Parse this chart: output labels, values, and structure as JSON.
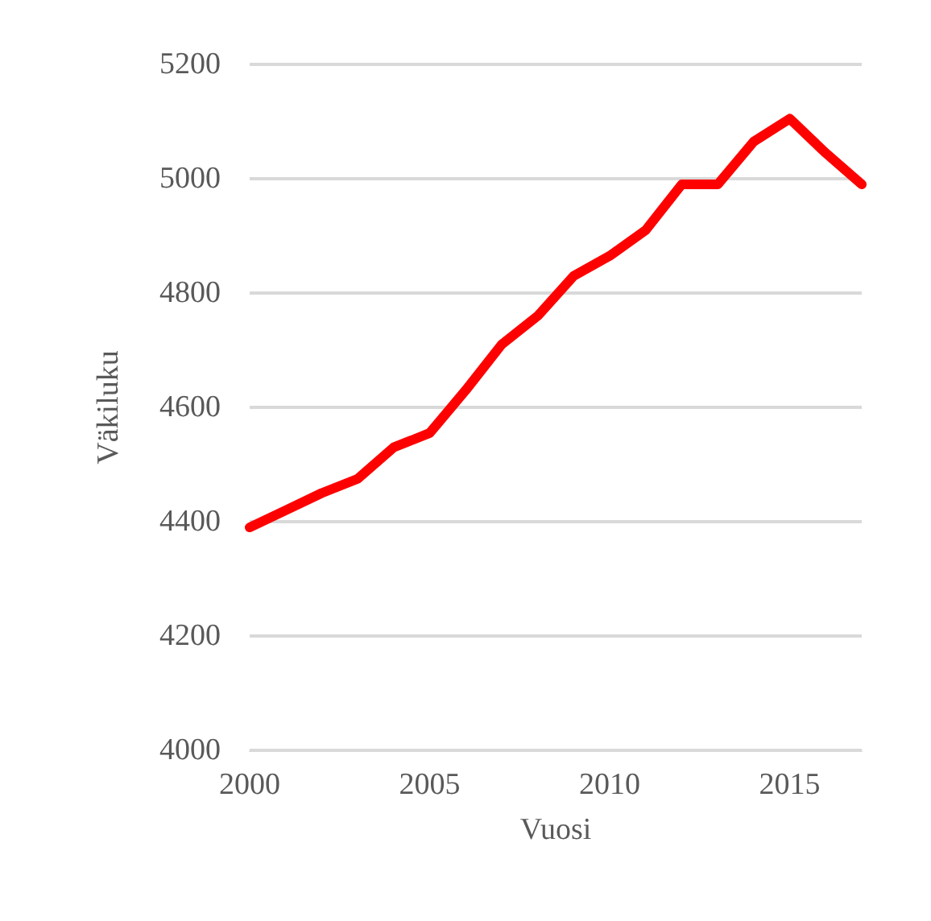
{
  "chart_data": {
    "type": "line",
    "xlabel": "Vuosi",
    "ylabel": "Väkiluku",
    "x": [
      2000,
      2001,
      2002,
      2003,
      2004,
      2005,
      2006,
      2007,
      2008,
      2009,
      2010,
      2011,
      2012,
      2013,
      2014,
      2015,
      2016,
      2017
    ],
    "series": [
      {
        "color": "#ff0000",
        "values": [
          4390,
          4420,
          4450,
          4475,
          4530,
          4555,
          4630,
          4710,
          4760,
          4830,
          4865,
          4910,
          4990,
          4990,
          5065,
          5105,
          5045,
          4990
        ]
      }
    ],
    "xlim": [
      2000,
      2017
    ],
    "xticks": [
      2000,
      2005,
      2010,
      2015
    ],
    "ylim": [
      4000,
      5200
    ],
    "yticks": [
      4000,
      4200,
      4400,
      4600,
      4800,
      5000,
      5200
    ],
    "grid": "y",
    "marker": "none",
    "line_style": "solid"
  }
}
